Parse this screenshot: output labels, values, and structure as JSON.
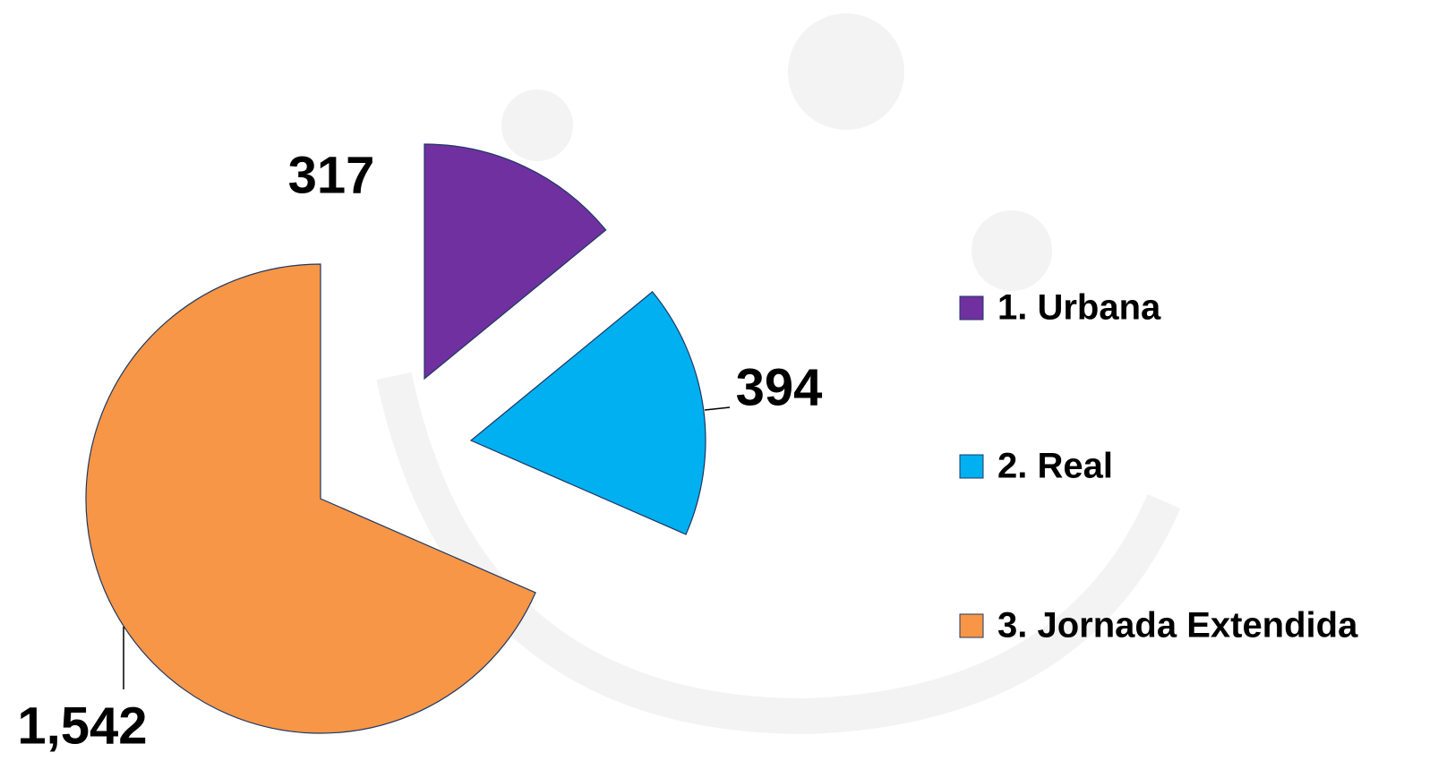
{
  "chart_data": {
    "type": "pie",
    "categories": [
      "1. Urbana",
      "2. Real",
      "3. Jornada Extendida"
    ],
    "values": [
      317,
      394,
      1542
    ],
    "value_labels": [
      "317",
      "394",
      "1,542"
    ],
    "colors": [
      "#7030a0",
      "#00b0f0",
      "#f79646"
    ],
    "legend": "right"
  }
}
